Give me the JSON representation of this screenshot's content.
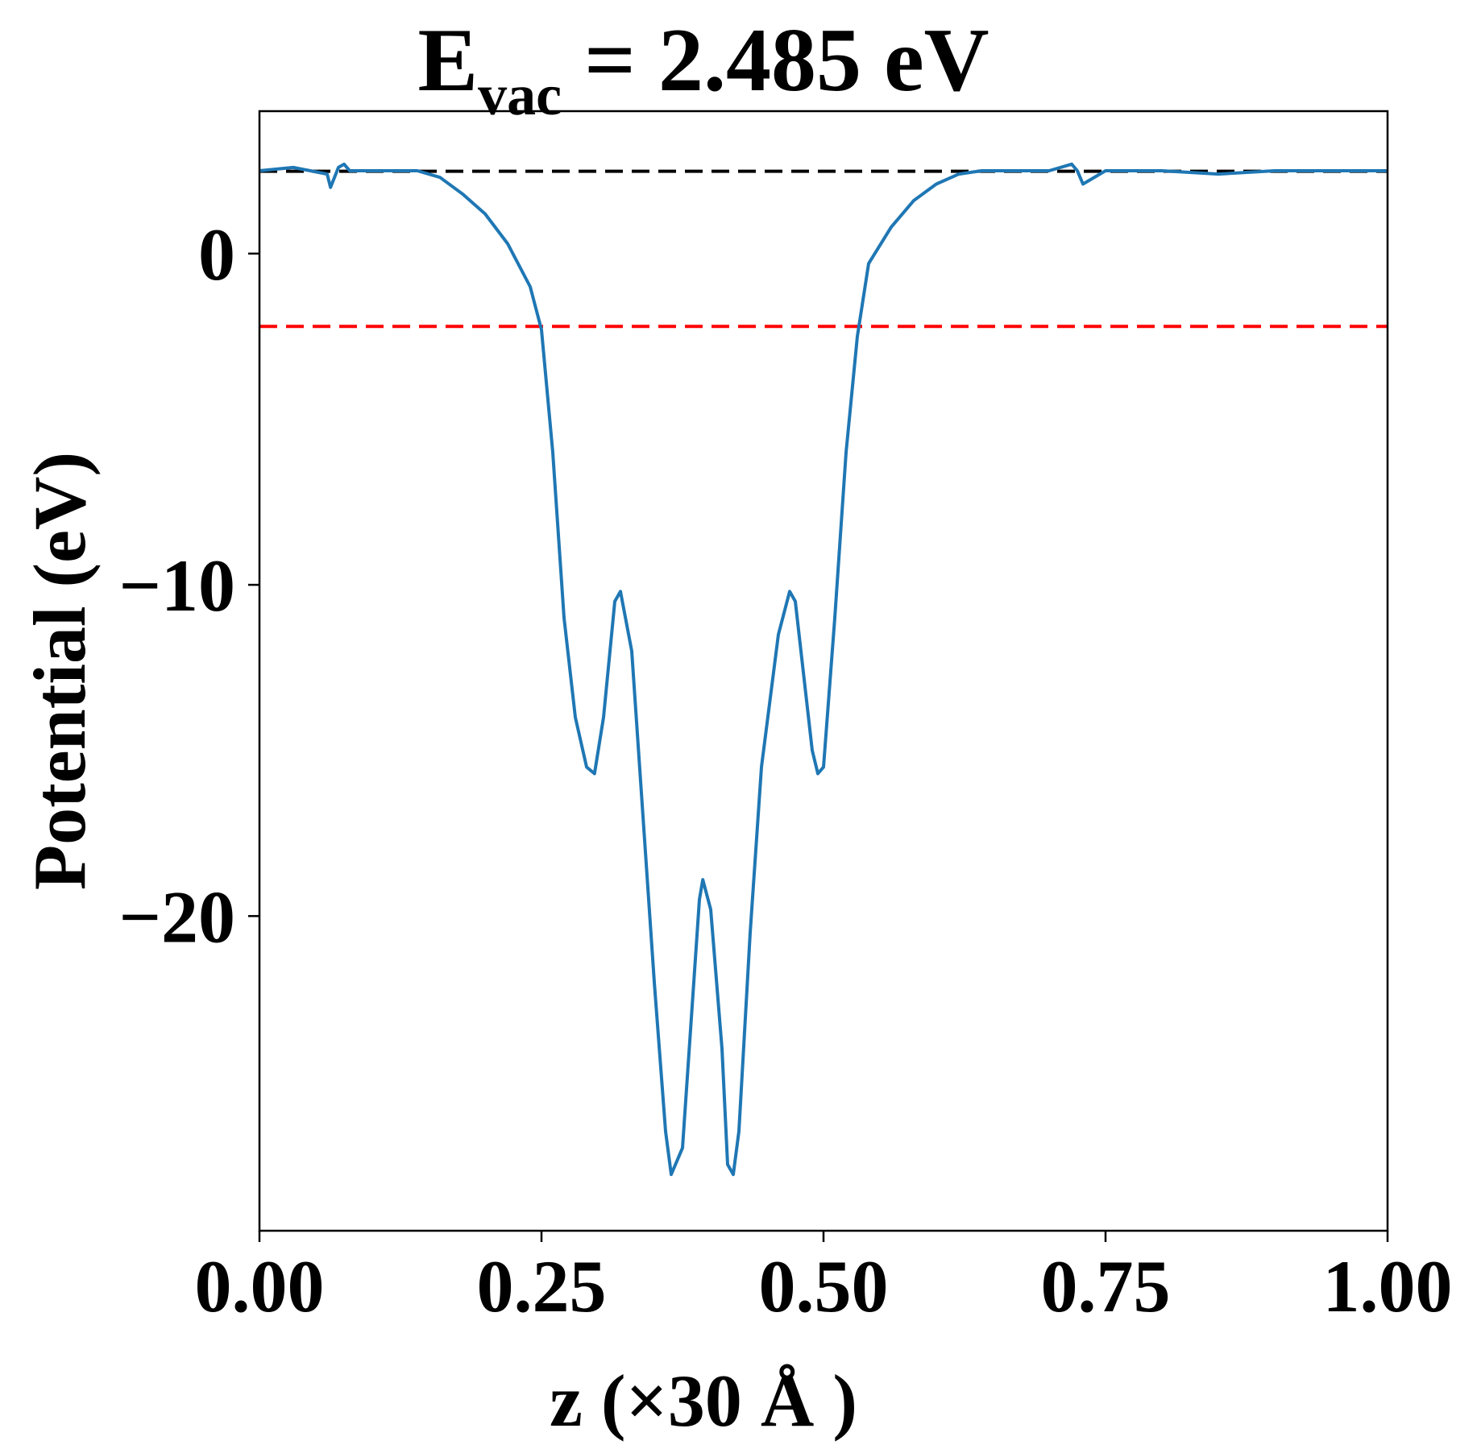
{
  "chart_data": {
    "type": "line",
    "title": {
      "main": "E",
      "sub": "vac",
      "rest": " = 2.485 eV"
    },
    "xlabel": "z (×30 Å )",
    "ylabel": "Potential (eV)",
    "xlim": [
      0.0,
      1.0
    ],
    "ylim": [
      -29.5,
      4.3
    ],
    "xticks": [
      0.0,
      0.25,
      0.5,
      0.75,
      1.0
    ],
    "xtick_labels": [
      "0.00",
      "0.25",
      "0.50",
      "0.75",
      "1.00"
    ],
    "yticks": [
      0,
      -10,
      -20
    ],
    "ytick_labels": [
      "0",
      "−10",
      "−20"
    ],
    "grid": false,
    "legend": "none",
    "reference_lines": [
      {
        "y": 2.485,
        "color": "#000000",
        "style": "dashed"
      },
      {
        "y": -2.2,
        "color": "#ff0000",
        "style": "dashed"
      }
    ],
    "series": [
      {
        "color": "#1f77b4",
        "x": [
          0.0,
          0.03,
          0.06,
          0.063,
          0.07,
          0.075,
          0.08,
          0.1,
          0.14,
          0.16,
          0.18,
          0.2,
          0.22,
          0.24,
          0.25,
          0.26,
          0.27,
          0.28,
          0.29,
          0.297,
          0.305,
          0.315,
          0.32,
          0.33,
          0.34,
          0.35,
          0.36,
          0.365,
          0.375,
          0.385,
          0.39,
          0.393,
          0.4,
          0.41,
          0.415,
          0.42,
          0.425,
          0.435,
          0.445,
          0.46,
          0.47,
          0.475,
          0.48,
          0.49,
          0.495,
          0.5,
          0.51,
          0.52,
          0.53,
          0.54,
          0.56,
          0.58,
          0.6,
          0.62,
          0.64,
          0.66,
          0.7,
          0.72,
          0.725,
          0.73,
          0.75,
          0.8,
          0.85,
          0.9,
          0.95,
          1.0
        ],
        "y": [
          2.5,
          2.6,
          2.4,
          2.0,
          2.6,
          2.7,
          2.5,
          2.5,
          2.5,
          2.3,
          1.8,
          1.2,
          0.3,
          -1.0,
          -2.3,
          -6.0,
          -11.0,
          -14.0,
          -15.5,
          -15.7,
          -14.0,
          -10.5,
          -10.2,
          -12.0,
          -17.0,
          -22.0,
          -26.5,
          -27.8,
          -27.0,
          -22.0,
          -19.5,
          -18.9,
          -19.8,
          -24.0,
          -27.5,
          -27.8,
          -26.5,
          -20.5,
          -15.5,
          -11.5,
          -10.2,
          -10.5,
          -12.0,
          -15.0,
          -15.7,
          -15.5,
          -11.0,
          -6.0,
          -2.5,
          -0.3,
          0.8,
          1.6,
          2.1,
          2.4,
          2.5,
          2.5,
          2.5,
          2.7,
          2.5,
          2.1,
          2.5,
          2.5,
          2.4,
          2.5,
          2.5,
          2.5
        ]
      }
    ]
  }
}
